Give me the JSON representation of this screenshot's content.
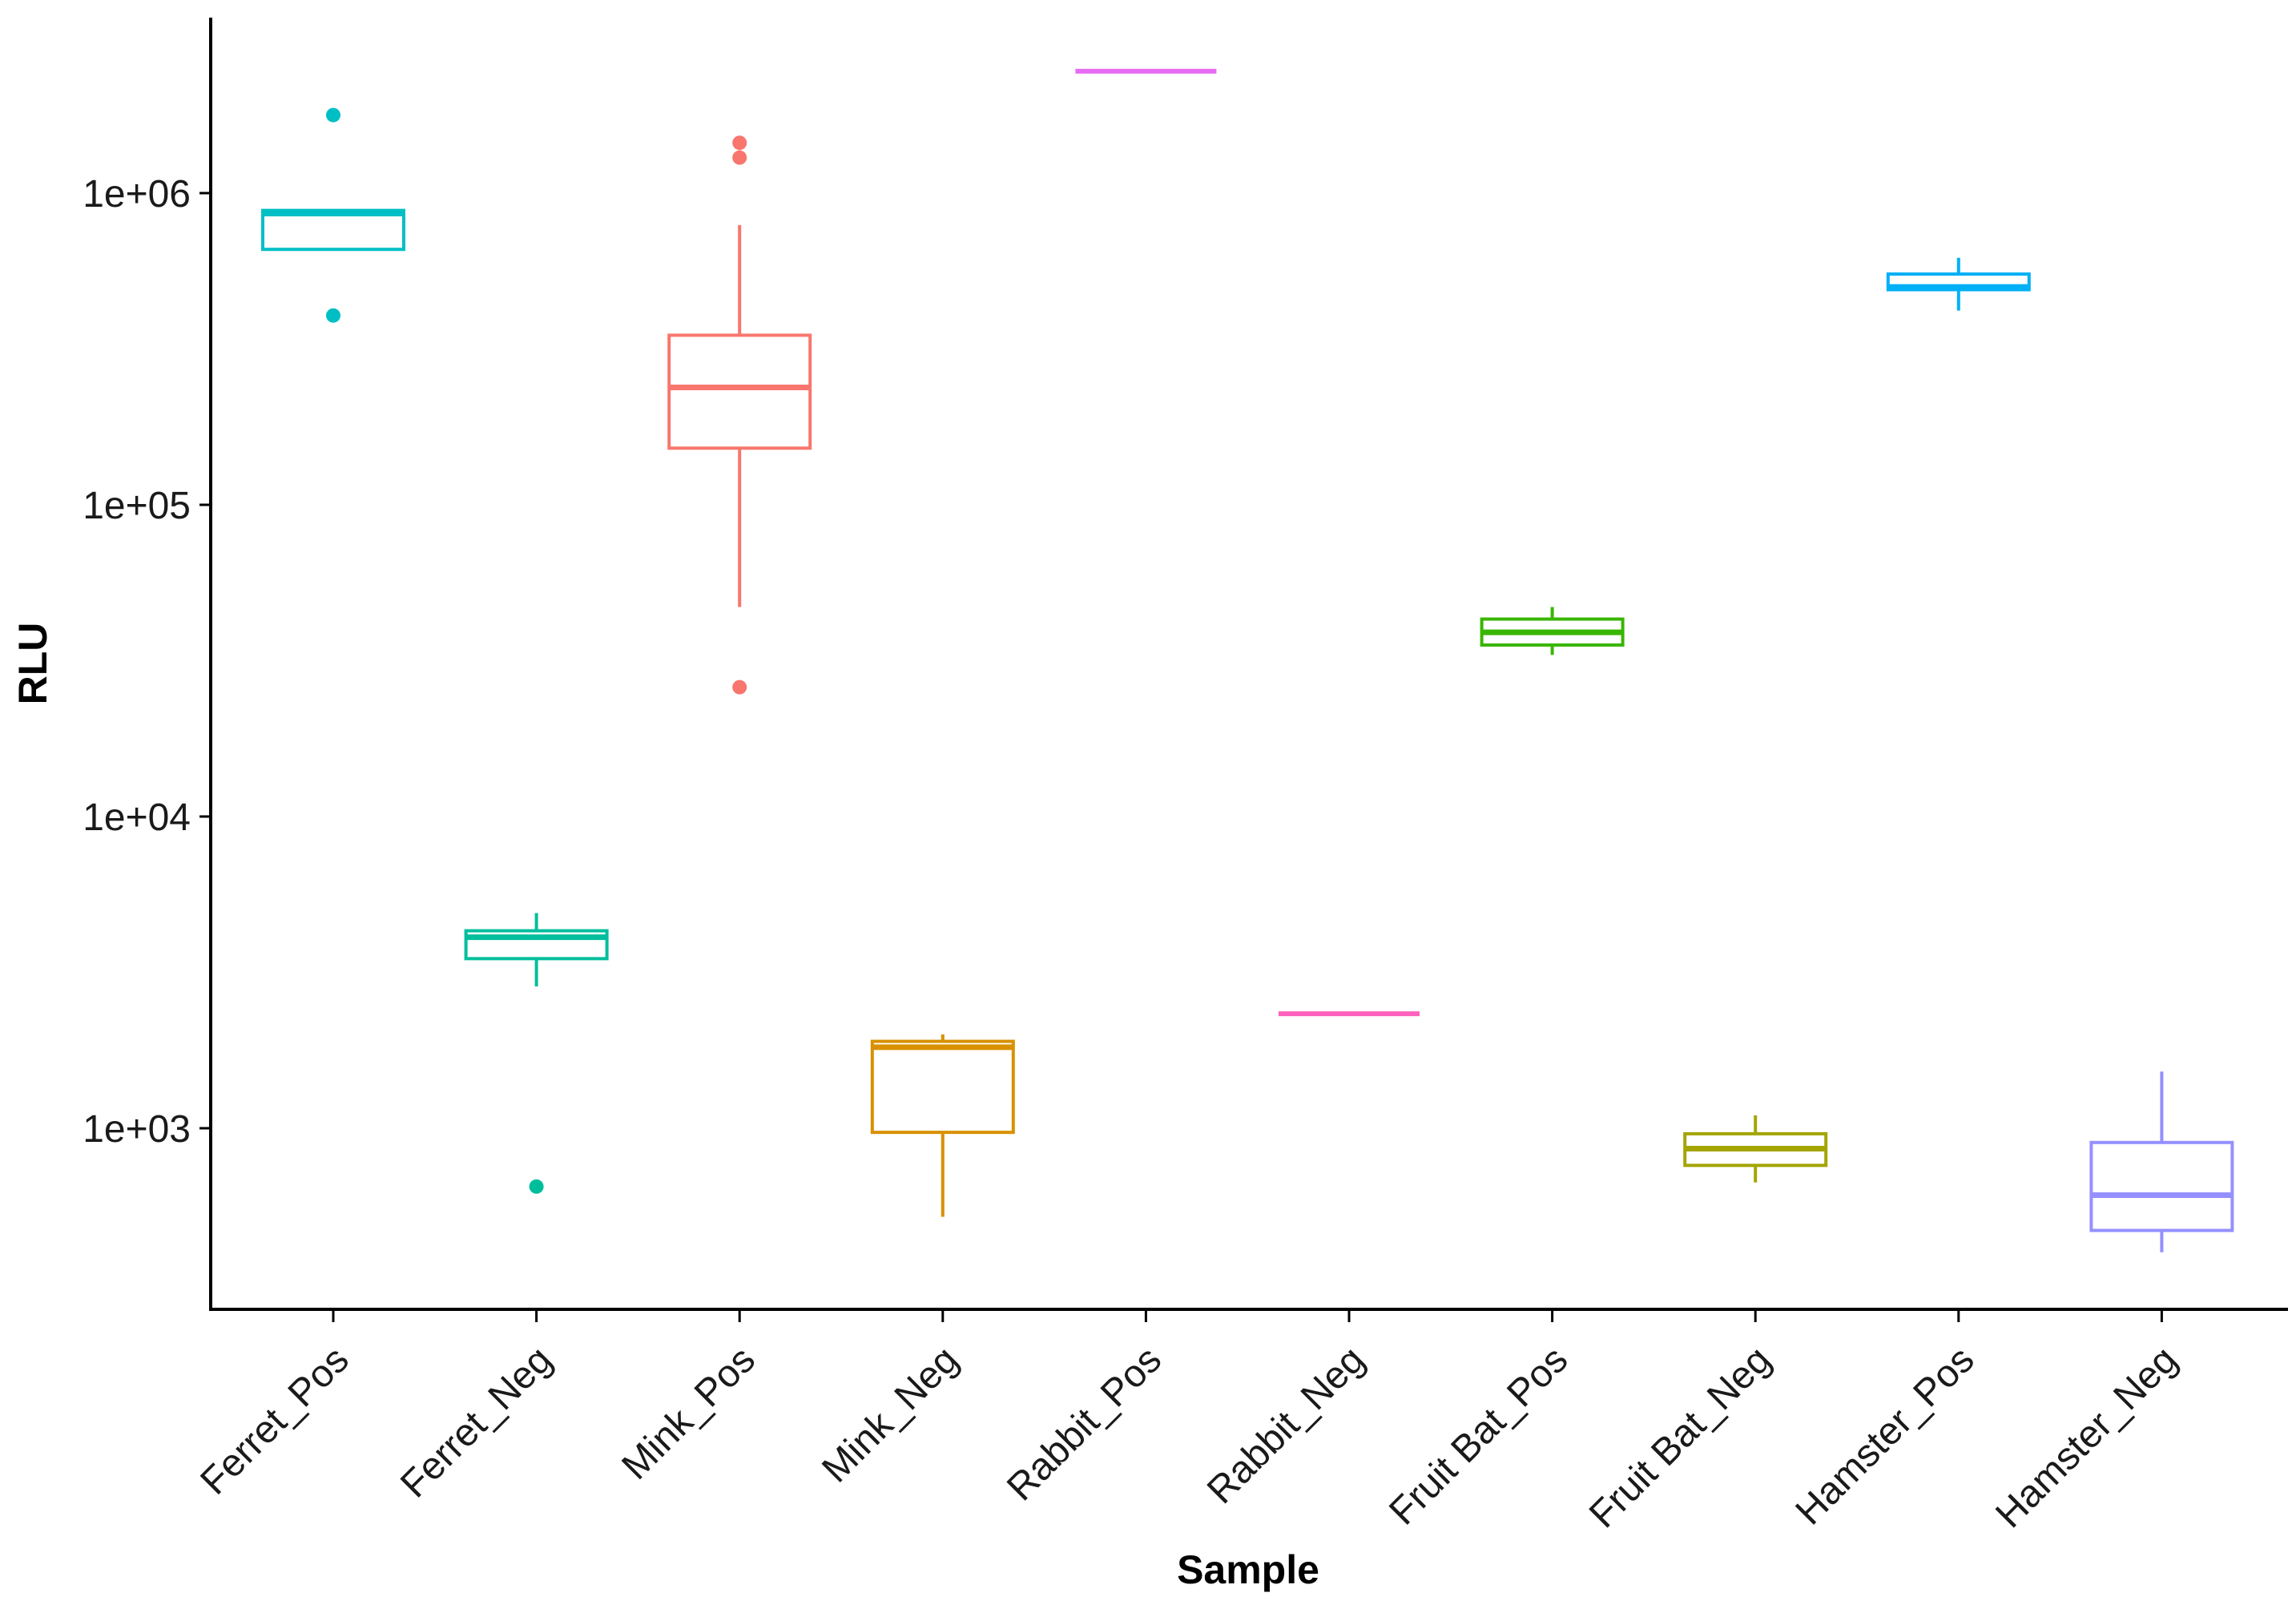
{
  "chart_data": {
    "type": "boxplot",
    "title": "",
    "xlabel": "Sample",
    "ylabel": "RLU",
    "yscale": "log",
    "ylim": [
      290,
      4000000
    ],
    "yticks": [
      {
        "value": 1000,
        "label": "1e+03"
      },
      {
        "value": 10000,
        "label": "1e+04"
      },
      {
        "value": 100000,
        "label": "1e+05"
      },
      {
        "value": 1000000,
        "label": "1e+06"
      }
    ],
    "grid": false,
    "legend": "none",
    "categories": [
      "Ferret_Pos",
      "Ferret_Neg",
      "Mink_Pos",
      "Mink_Neg",
      "Rabbit_Pos",
      "Rabbit_Neg",
      "Fruit Bat_Pos",
      "Fruit Bat_Neg",
      "Hamster_Pos",
      "Hamster_Neg"
    ],
    "boxes": [
      {
        "category": "Ferret_Pos",
        "color": "#00BFC4",
        "whisker_low": 660000,
        "q1": 660000,
        "median": 860000,
        "q3": 880000,
        "whisker_high": 880000,
        "outliers": [
          1780000,
          405000
        ]
      },
      {
        "category": "Ferret_Neg",
        "color": "#00BE9C",
        "whisker_low": 2850.0,
        "q1": 3500,
        "median": 4100,
        "q3": 4300,
        "whisker_high": 4900,
        "outliers": [
          650
        ]
      },
      {
        "category": "Mink_Pos",
        "color": "#F8766D",
        "whisker_low": 47000,
        "q1": 152000,
        "median": 238000,
        "q3": 350000,
        "whisker_high": 790000,
        "outliers": [
          1450000,
          1300000,
          26000
        ]
      },
      {
        "category": "Mink_Neg",
        "color": "#D89000",
        "whisker_low": 520,
        "q1": 970,
        "median": 1820,
        "q3": 1900,
        "whisker_high": 2000,
        "outliers": []
      },
      {
        "category": "Rabbit_Pos",
        "color": "#E76BF3",
        "whisker_low": 2460000,
        "q1": 2460000,
        "median": 2460000,
        "q3": 2460000,
        "whisker_high": 2460000,
        "outliers": []
      },
      {
        "category": "Rabbit_Neg",
        "color": "#FF62BC",
        "whisker_low": 2330,
        "q1": 2330,
        "median": 2330,
        "q3": 2330,
        "whisker_high": 2330,
        "outliers": []
      },
      {
        "category": "Fruit Bat_Pos",
        "color": "#39B600",
        "whisker_low": 33000,
        "q1": 35500,
        "median": 39000,
        "q3": 43000,
        "whisker_high": 47000,
        "outliers": []
      },
      {
        "category": "Fruit Bat_Neg",
        "color": "#A3A500",
        "whisker_low": 670,
        "q1": 760,
        "median": 860,
        "q3": 960,
        "whisker_high": 1100,
        "outliers": []
      },
      {
        "category": "Hamster_Pos",
        "color": "#00B0F6",
        "whisker_low": 420000,
        "q1": 490000,
        "median": 500000,
        "q3": 550000,
        "whisker_high": 620000,
        "outliers": []
      },
      {
        "category": "Hamster_Neg",
        "color": "#9590FF",
        "whisker_low": 400,
        "q1": 470,
        "median": 610,
        "q3": 900,
        "whisker_high": 1520,
        "outliers": []
      }
    ]
  }
}
